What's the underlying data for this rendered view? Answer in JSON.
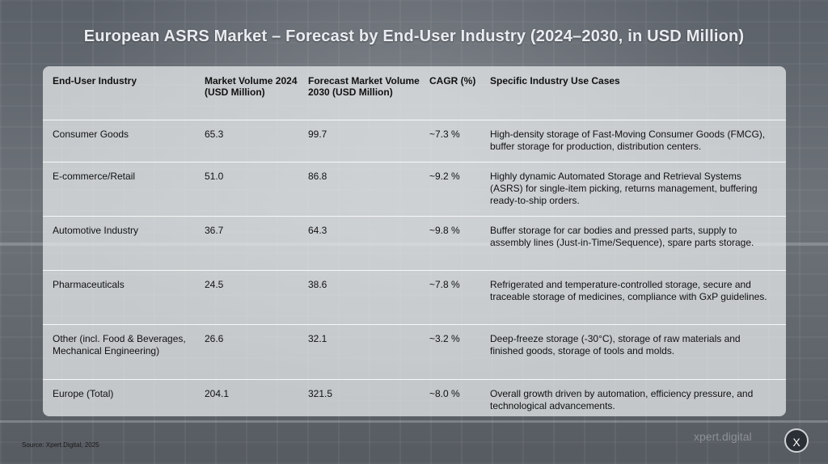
{
  "title": "European ASRS Market – Forecast by End-User Industry (2024–2030, in USD Million)",
  "table": {
    "headers": [
      "End-User Industry",
      "Market Volume 2024 (USD Million)",
      "Forecast Market Volume 2030 (USD Million)",
      "CAGR (%)",
      "Specific Industry Use Cases"
    ],
    "rows": [
      {
        "industry": "Consumer Goods",
        "vol2024": "65.3",
        "vol2030": "99.7",
        "cagr": "~7.3 %",
        "use_cases": "High-density storage of Fast-Moving Consumer Goods (FMCG), buffer storage for production, distribution centers."
      },
      {
        "industry": "E-commerce/Retail",
        "vol2024": "51.0",
        "vol2030": "86.8",
        "cagr": "~9.2 %",
        "use_cases": "Highly dynamic Automated Storage and Retrieval Systems (ASRS) for single-item picking, returns management, buffering ready-to-ship orders."
      },
      {
        "industry": "Automotive Industry",
        "vol2024": "36.7",
        "vol2030": "64.3",
        "cagr": "~9.8 %",
        "use_cases": "Buffer storage for car bodies and pressed parts, supply to assembly lines (Just-in-Time/Sequence), spare parts storage."
      },
      {
        "industry": "Pharmaceuticals",
        "vol2024": "24.5",
        "vol2030": "38.6",
        "cagr": "~7.8 %",
        "use_cases": "Refrigerated and temperature-controlled storage, secure and traceable storage of medicines, compliance with GxP guidelines."
      },
      {
        "industry": "Other (incl. Food & Beverages, Mechanical Engineering)",
        "vol2024": "26.6",
        "vol2030": "32.1",
        "cagr": "~3.2 %",
        "use_cases": "Deep-freeze storage (-30°C), storage of raw materials and finished goods, storage of tools and molds."
      },
      {
        "industry": "Europe (Total)",
        "vol2024": "204.1",
        "vol2030": "321.5",
        "cagr": "~8.0 %",
        "use_cases": "Overall growth driven by automation, efficiency pressure, and technological advancements."
      }
    ]
  },
  "source": "Source: Xpert.Digital, 2025",
  "brand": "xpert.digital",
  "close_label": "X",
  "close_icon": "close-icon",
  "colors": {
    "title_text": "#e9edf1",
    "panel": "rgba(236,238,240,0.72)",
    "close_button": "#2b3036"
  }
}
